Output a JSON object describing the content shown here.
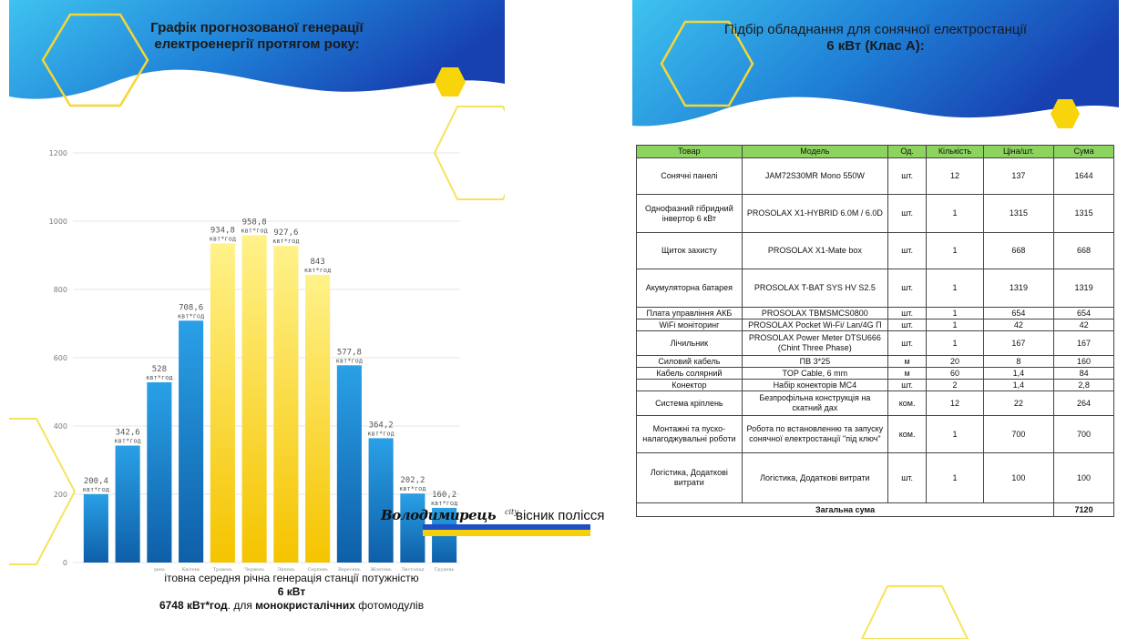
{
  "left_slide": {
    "title_line1": "Графік прогнозованої генерації",
    "title_line2": "електроенергії протягом року:",
    "caption_line1": "ітовна середня річна генерація станції потужністю",
    "caption_line2": "6 кВт",
    "caption_line3_bold": "6748 кВт*год",
    "caption_line3_rest": ". для ",
    "caption_line3_bold2": "монокристалічних",
    "caption_line3_end": " фотомодулів"
  },
  "watermark": {
    "brand": "Володимирець",
    "brand_suffix": "city",
    "subtitle": "вісник полісся"
  },
  "chart_data": {
    "type": "bar",
    "categories": [
      "",
      "",
      "день",
      "Квітень",
      "Травень",
      "Червень",
      "Липень",
      "Серпень",
      "Вересень",
      "Жовтень",
      "Листопад",
      "Грудень"
    ],
    "values": [
      200.4,
      342.6,
      528,
      708.6,
      934.8,
      958.8,
      927.6,
      843,
      577.8,
      364.2,
      202.2,
      160.2
    ],
    "value_labels": [
      "200,4",
      "342,6",
      "528",
      "708,6",
      "934,8",
      "958,8",
      "927,6",
      "843",
      "577,8",
      "364,2",
      "202,2",
      "160,2"
    ],
    "unit_label": "квт*год",
    "ylim": [
      0,
      1200
    ],
    "yticks": [
      0,
      200,
      400,
      600,
      800,
      1000,
      1200
    ],
    "grid": true,
    "colors": {
      "blue_top": "#2aa0e6",
      "blue_bottom": "#0e5fa8",
      "yellow_top": "#fff28a",
      "yellow_bottom": "#f5c400"
    },
    "highlight_indices": [
      4,
      5,
      6,
      7
    ]
  },
  "right_slide": {
    "title_line1": "Підбір обладнання для сонячної електростанції",
    "title_line2": "6 кВт (Клас А):",
    "table": {
      "headers": [
        "Товар",
        "Модель",
        "Од.",
        "Кількість",
        "Ціна/шт.",
        "Сума"
      ],
      "rows": [
        {
          "item": "Сонячні панелі",
          "model": "JAM72S30MR Mono 550W",
          "unit": "шт.",
          "qty": "12",
          "price": "137",
          "sum": "1644",
          "h": 40
        },
        {
          "item": "Однофазний гібридний інвертор 6 кВт",
          "model": "PROSOLAX X1-HYBRID 6.0M / 6.0D",
          "unit": "шт.",
          "qty": "1",
          "price": "1315",
          "sum": "1315",
          "h": 42
        },
        {
          "item": "Щиток захисту",
          "model": "PROSOLAX X1-Mate box",
          "unit": "шт.",
          "qty": "1",
          "price": "668",
          "sum": "668",
          "h": 40
        },
        {
          "item": "Акумуляторна батарея",
          "model": "PROSOLAX T-BAT SYS HV S2.5",
          "unit": "шт.",
          "qty": "1",
          "price": "1319",
          "sum": "1319",
          "h": 42
        },
        {
          "item": "Плата управління АКБ",
          "model": "PROSOLAX TBMSMCS0800",
          "unit": "шт.",
          "qty": "1",
          "price": "654",
          "sum": "654",
          "h": 13
        },
        {
          "item": "WiFi моніторинг",
          "model": "PROSOLAX Pocket Wi-Fi/ Lan/4G П",
          "unit": "шт.",
          "qty": "1",
          "price": "42",
          "sum": "42",
          "h": 13
        },
        {
          "item": "Лічильник",
          "model": "PROSOLAX Power Meter DTSU666 (Chint Three Phase)",
          "unit": "шт.",
          "qty": "1",
          "price": "167",
          "sum": "167",
          "h": 27
        },
        {
          "item": "Силовий кабель",
          "model": "ПВ 3*25",
          "unit": "м",
          "qty": "20",
          "price": "8",
          "sum": "160",
          "h": 13
        },
        {
          "item": "Кабель солярний",
          "model": "TOP Cable, 6 mm",
          "unit": "м",
          "qty": "60",
          "price": "1,4",
          "sum": "84",
          "h": 13
        },
        {
          "item": "Конектор",
          "model": "Набір конекторів MC4",
          "unit": "шт.",
          "qty": "2",
          "price": "1,4",
          "sum": "2,8",
          "h": 13
        },
        {
          "item": "Система кріплень",
          "model": "Безпрофільна конструкція на скатний дах",
          "unit": "ком.",
          "qty": "12",
          "price": "22",
          "sum": "264",
          "h": 27
        },
        {
          "item": "Монтажні та пуско-налагоджувальні роботи",
          "model": "Робота по встановленню та запуску сонячної електростанції \"під ключ\"",
          "unit": "ком.",
          "qty": "1",
          "price": "700",
          "sum": "700",
          "h": 41
        },
        {
          "item": "Логістика, Додаткові витрати",
          "model": "Логістика, Додаткові витрати",
          "unit": "шт.",
          "qty": "1",
          "price": "100",
          "sum": "100",
          "h": 55
        }
      ],
      "total_label": "Загальна сума",
      "total_value": "7120"
    }
  }
}
